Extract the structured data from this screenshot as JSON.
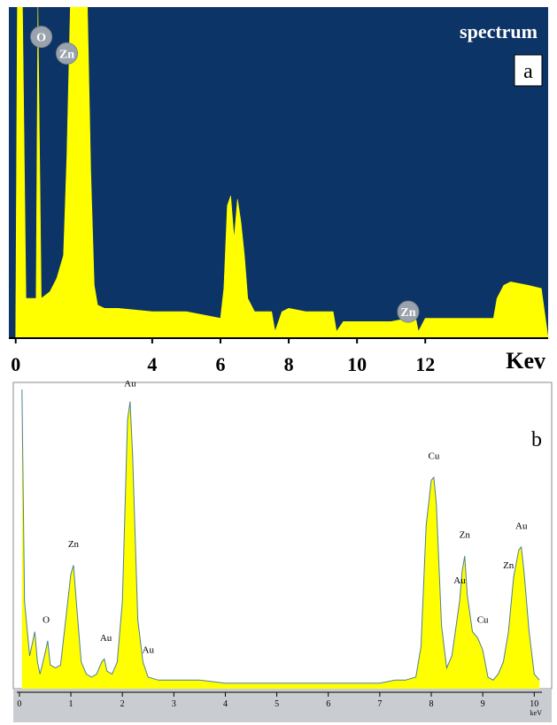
{
  "chart_data": [
    {
      "type": "area",
      "title": "spectrum",
      "panel_label": "a",
      "xlabel": "Kev",
      "xlim": [
        -0.2,
        15.6
      ],
      "ylim": [
        0,
        100
      ],
      "x_ticks": [
        0,
        4,
        6,
        8,
        10,
        12
      ],
      "grid": false,
      "colors": {
        "background": "#0d3466",
        "fill": "#ffff00",
        "badge": "#9aa3ad",
        "badge_text": "#ffffff"
      },
      "x": [
        -0.2,
        0.0,
        0.05,
        0.1,
        0.2,
        0.3,
        0.5,
        0.6,
        0.65,
        0.75,
        1.0,
        1.2,
        1.4,
        1.5,
        1.6,
        1.8,
        2.0,
        2.1,
        2.2,
        2.3,
        2.4,
        2.6,
        3.0,
        4.0,
        5.0,
        6.0,
        6.1,
        6.2,
        6.3,
        6.4,
        6.5,
        6.6,
        6.7,
        6.8,
        7.0,
        7.5,
        7.6,
        7.8,
        8.0,
        8.5,
        9.0,
        9.3,
        9.4,
        9.6,
        10.0,
        10.5,
        11.0,
        11.5,
        11.7,
        11.8,
        12.0,
        12.5,
        13.0,
        13.5,
        14.0,
        14.1,
        14.3,
        14.5,
        15.0,
        15.4,
        15.6
      ],
      "values": [
        0,
        0,
        100,
        100,
        100,
        12,
        12,
        12,
        100,
        12,
        14,
        18,
        25,
        55,
        100,
        100,
        100,
        100,
        50,
        16,
        10,
        9,
        9,
        8,
        8,
        6,
        15,
        40,
        43,
        30,
        42,
        35,
        25,
        12,
        8,
        8,
        2,
        8,
        9,
        8,
        8,
        8,
        2,
        5,
        5,
        5,
        5,
        6,
        7,
        2,
        6,
        6,
        6,
        6,
        6,
        12,
        16,
        17,
        16,
        15,
        0
      ],
      "annotations": [
        {
          "label": "O",
          "x": 0.75,
          "y": 91
        },
        {
          "label": "Zn",
          "x": 1.5,
          "y": 86
        },
        {
          "label": "Zn",
          "x": 11.5,
          "y": 8
        }
      ]
    },
    {
      "type": "area",
      "panel_label": "b",
      "xlabel": "keV",
      "xlim": [
        -0.05,
        10.15
      ],
      "ylim": [
        0,
        100
      ],
      "x_ticks": [
        0,
        1,
        2,
        3,
        4,
        5,
        6,
        7,
        8,
        9,
        10
      ],
      "grid": false,
      "colors": {
        "background": "#ffffff",
        "fill": "#ffff00",
        "line": "#4f7f96",
        "axis_strip": "#c9cdd2"
      },
      "x": [
        0.05,
        0.1,
        0.2,
        0.25,
        0.3,
        0.35,
        0.4,
        0.5,
        0.55,
        0.6,
        0.7,
        0.8,
        0.9,
        1.0,
        1.05,
        1.1,
        1.2,
        1.3,
        1.4,
        1.5,
        1.6,
        1.65,
        1.7,
        1.8,
        1.9,
        2.0,
        2.1,
        2.15,
        2.2,
        2.3,
        2.4,
        2.5,
        2.7,
        3.0,
        3.5,
        4.0,
        4.5,
        5.0,
        5.5,
        6.0,
        6.5,
        7.0,
        7.3,
        7.5,
        7.7,
        7.8,
        7.9,
        8.0,
        8.05,
        8.1,
        8.2,
        8.3,
        8.4,
        8.5,
        8.55,
        8.6,
        8.65,
        8.7,
        8.8,
        8.9,
        9.0,
        9.1,
        9.2,
        9.3,
        9.4,
        9.5,
        9.6,
        9.7,
        9.75,
        9.8,
        9.9,
        10.0,
        10.1
      ],
      "values": [
        100,
        30,
        12,
        16,
        20,
        10,
        6,
        13,
        17,
        9,
        8,
        9,
        24,
        39,
        42,
        31,
        10,
        6,
        5,
        6,
        10,
        11,
        7,
        6,
        10,
        30,
        90,
        96,
        78,
        24,
        10,
        5,
        4,
        4,
        4,
        3,
        3,
        3,
        3,
        3,
        3,
        3,
        4,
        4,
        5,
        15,
        55,
        70,
        71,
        62,
        22,
        8,
        12,
        24,
        30,
        40,
        45,
        32,
        20,
        18,
        14,
        5,
        4,
        6,
        10,
        20,
        38,
        47,
        48,
        40,
        20,
        6,
        4
      ],
      "annotations": [
        {
          "label": "O",
          "x": 0.52,
          "y": 23
        },
        {
          "label": "Zn",
          "x": 1.05,
          "y": 48
        },
        {
          "label": "Au",
          "x": 1.68,
          "y": 17
        },
        {
          "label": "Au",
          "x": 2.15,
          "y": 101
        },
        {
          "label": "Au",
          "x": 2.5,
          "y": 13
        },
        {
          "label": "Cu",
          "x": 8.05,
          "y": 77
        },
        {
          "label": "Zn",
          "x": 8.65,
          "y": 51
        },
        {
          "label": "Au",
          "x": 8.55,
          "y": 36
        },
        {
          "label": "Cu",
          "x": 9.0,
          "y": 23
        },
        {
          "label": "Au",
          "x": 9.75,
          "y": 54
        },
        {
          "label": "Zn",
          "x": 9.5,
          "y": 41
        }
      ]
    }
  ]
}
